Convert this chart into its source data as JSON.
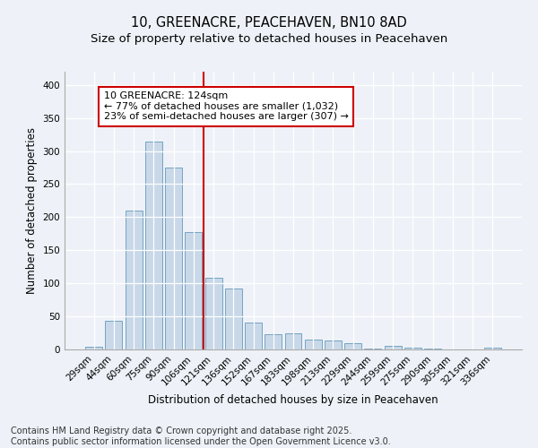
{
  "title1": "10, GREENACRE, PEACEHAVEN, BN10 8AD",
  "title2": "Size of property relative to detached houses in Peacehaven",
  "xlabel": "Distribution of detached houses by size in Peacehaven",
  "ylabel": "Number of detached properties",
  "categories": [
    "29sqm",
    "44sqm",
    "60sqm",
    "75sqm",
    "90sqm",
    "106sqm",
    "121sqm",
    "136sqm",
    "152sqm",
    "167sqm",
    "183sqm",
    "198sqm",
    "213sqm",
    "229sqm",
    "244sqm",
    "259sqm",
    "275sqm",
    "290sqm",
    "305sqm",
    "321sqm",
    "336sqm"
  ],
  "values": [
    4,
    44,
    210,
    315,
    275,
    178,
    108,
    92,
    40,
    23,
    25,
    15,
    13,
    10,
    2,
    5,
    3,
    2,
    0,
    0,
    3
  ],
  "bar_color": "#c8d8e8",
  "bar_edge_color": "#6699bb",
  "vline_x_index": 6,
  "vline_color": "#cc0000",
  "annotation_box_text": "10 GREENACRE: 124sqm\n← 77% of detached houses are smaller (1,032)\n23% of semi-detached houses are larger (307) →",
  "annotation_box_color": "#ffffff",
  "annotation_box_edge_color": "#cc0000",
  "ylim": [
    0,
    420
  ],
  "yticks": [
    0,
    50,
    100,
    150,
    200,
    250,
    300,
    350,
    400
  ],
  "footnote": "Contains HM Land Registry data © Crown copyright and database right 2025.\nContains public sector information licensed under the Open Government Licence v3.0.",
  "bg_color": "#eef2f8",
  "title_fontsize": 10.5,
  "subtitle_fontsize": 9.5,
  "annotation_fontsize": 8,
  "footnote_fontsize": 7,
  "axis_label_fontsize": 8.5,
  "tick_fontsize": 7.5
}
